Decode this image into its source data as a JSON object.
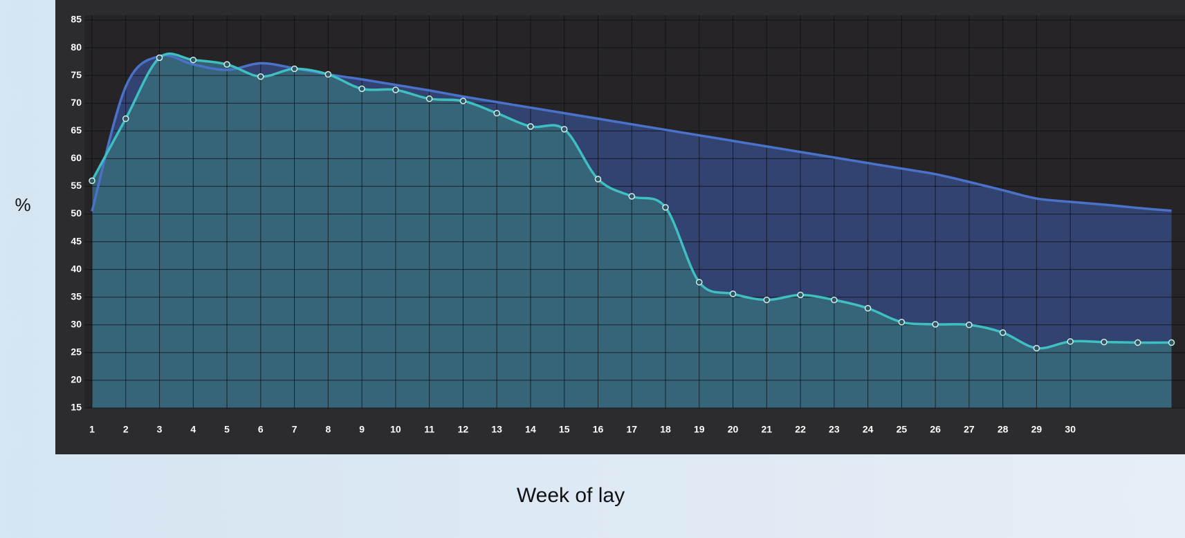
{
  "chart_data": {
    "type": "line",
    "y_label": "%",
    "x_label": "Week of lay",
    "x": [
      1,
      2,
      3,
      4,
      5,
      6,
      7,
      8,
      9,
      10,
      11,
      12,
      13,
      14,
      15,
      16,
      17,
      18,
      19,
      20,
      21,
      22,
      23,
      24,
      25,
      26,
      27,
      28,
      29,
      30,
      31,
      32,
      33
    ],
    "xlim": [
      1,
      33.4
    ],
    "xticks": [
      1,
      2,
      3,
      4,
      5,
      6,
      7,
      8,
      9,
      10,
      11,
      12,
      13,
      14,
      15,
      16,
      17,
      18,
      19,
      20,
      21,
      22,
      23,
      24,
      25,
      26,
      27,
      28,
      29,
      30
    ],
    "ylim": [
      15,
      85
    ],
    "yticks": [
      15,
      20,
      25,
      30,
      35,
      40,
      45,
      50,
      55,
      60,
      65,
      70,
      75,
      80,
      85
    ],
    "grid": true,
    "series": [
      {
        "color": "#4a72c8",
        "area_color": "#34477a",
        "markers": false,
        "values": [
          50.5,
          73,
          78.5,
          77,
          76,
          77.2,
          76.3,
          75.2,
          74.3,
          73.3,
          72.3,
          71.2,
          70.2,
          69.2,
          68.2,
          67.2,
          66.2,
          65.2,
          64.2,
          63.2,
          62.2,
          61.2,
          60.2,
          59.2,
          58.2,
          57.2,
          55.8,
          54.3,
          52.8,
          52.2,
          51.7,
          51.1,
          50.6
        ]
      },
      {
        "color": "#3fc0c0",
        "area_color": "#36687a",
        "markers": true,
        "values": [
          56,
          67.2,
          78.2,
          77.8,
          77,
          74.8,
          76.2,
          75.2,
          72.6,
          72.4,
          70.8,
          70.4,
          68.2,
          65.8,
          65.3,
          56.3,
          53.2,
          51.2,
          37.7,
          35.6,
          34.5,
          35.4,
          34.5,
          33,
          30.5,
          30.1,
          30,
          28.6,
          25.8,
          27,
          26.9,
          26.8,
          26.8
        ]
      }
    ]
  }
}
